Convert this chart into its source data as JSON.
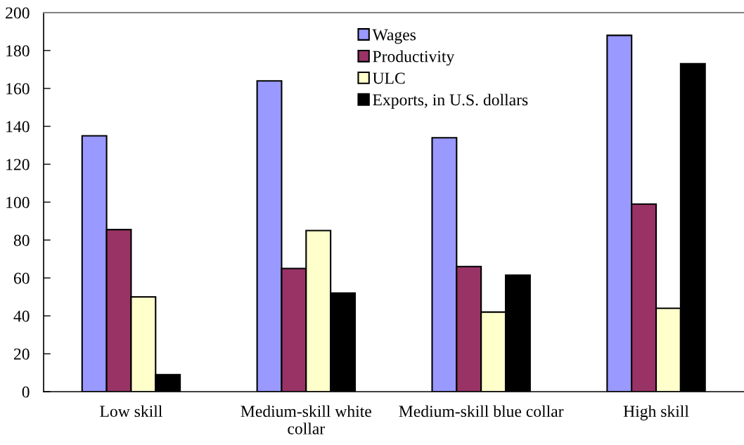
{
  "chart_data": {
    "type": "bar",
    "categories": [
      "Low skill",
      "Medium-skill white\ncollar",
      "Medium-skill blue collar",
      "High skill"
    ],
    "series": [
      {
        "name": "Wages",
        "color": "#9999ff",
        "values": [
          135,
          164,
          134,
          188
        ]
      },
      {
        "name": "Productivity",
        "color": "#993366",
        "values": [
          85.5,
          65,
          66,
          99
        ]
      },
      {
        "name": "ULC",
        "color": "#ffffcc",
        "values": [
          50,
          85,
          42,
          44
        ]
      },
      {
        "name": "Exports, in U.S. dollars",
        "color": "#000000",
        "values": [
          9,
          52,
          61.5,
          173
        ]
      }
    ],
    "ylim": [
      0,
      200
    ],
    "yticks": [
      0,
      20,
      40,
      60,
      80,
      100,
      120,
      140,
      160,
      180,
      200
    ],
    "grid": false,
    "legend": "top"
  }
}
